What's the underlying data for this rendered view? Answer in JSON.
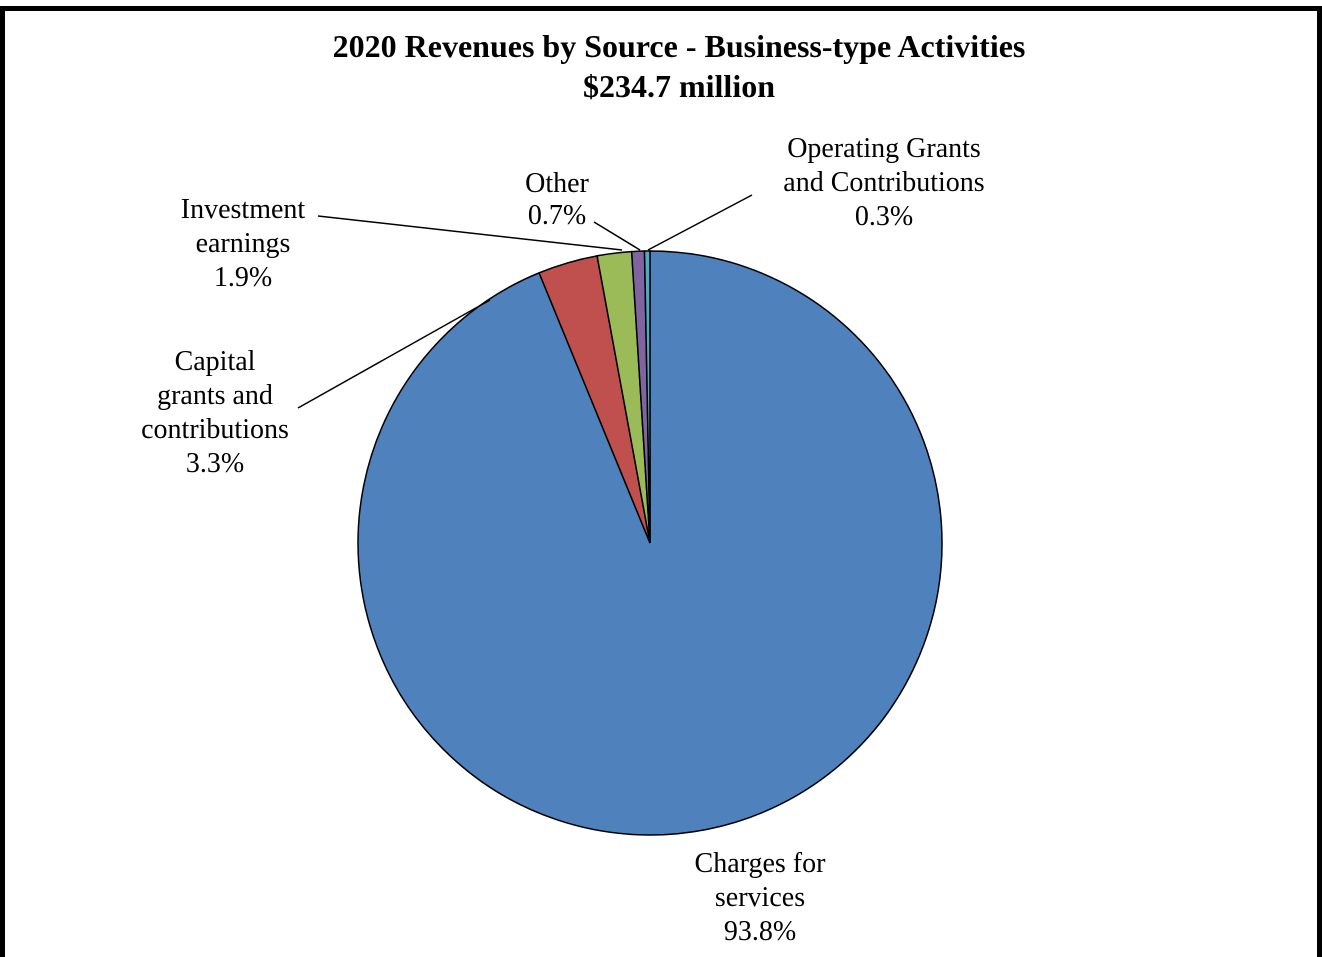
{
  "chart_data": {
    "type": "pie",
    "title": "2020 Revenues by Source - Business-type Activities",
    "subtitle": "$234.7 million",
    "slices": [
      {
        "label": [
          "Charges for",
          "services"
        ],
        "pct_label": "93.8%",
        "value": 93.8,
        "color": "#4f81bd"
      },
      {
        "label": [
          "Capital",
          "grants and",
          "contributions"
        ],
        "pct_label": "3.3%",
        "value": 3.3,
        "color": "#c0504d"
      },
      {
        "label": [
          "Investment",
          "earnings"
        ],
        "pct_label": "1.9%",
        "value": 1.9,
        "color": "#9bbb59"
      },
      {
        "label": [
          "Other"
        ],
        "pct_label": "0.7%",
        "value": 0.7,
        "color": "#8064a2"
      },
      {
        "label": [
          "Operating Grants",
          "and Contributions"
        ],
        "pct_label": "0.3%",
        "value": 0.3,
        "color": "#4bacc6"
      }
    ],
    "order": "clockwise from top"
  }
}
